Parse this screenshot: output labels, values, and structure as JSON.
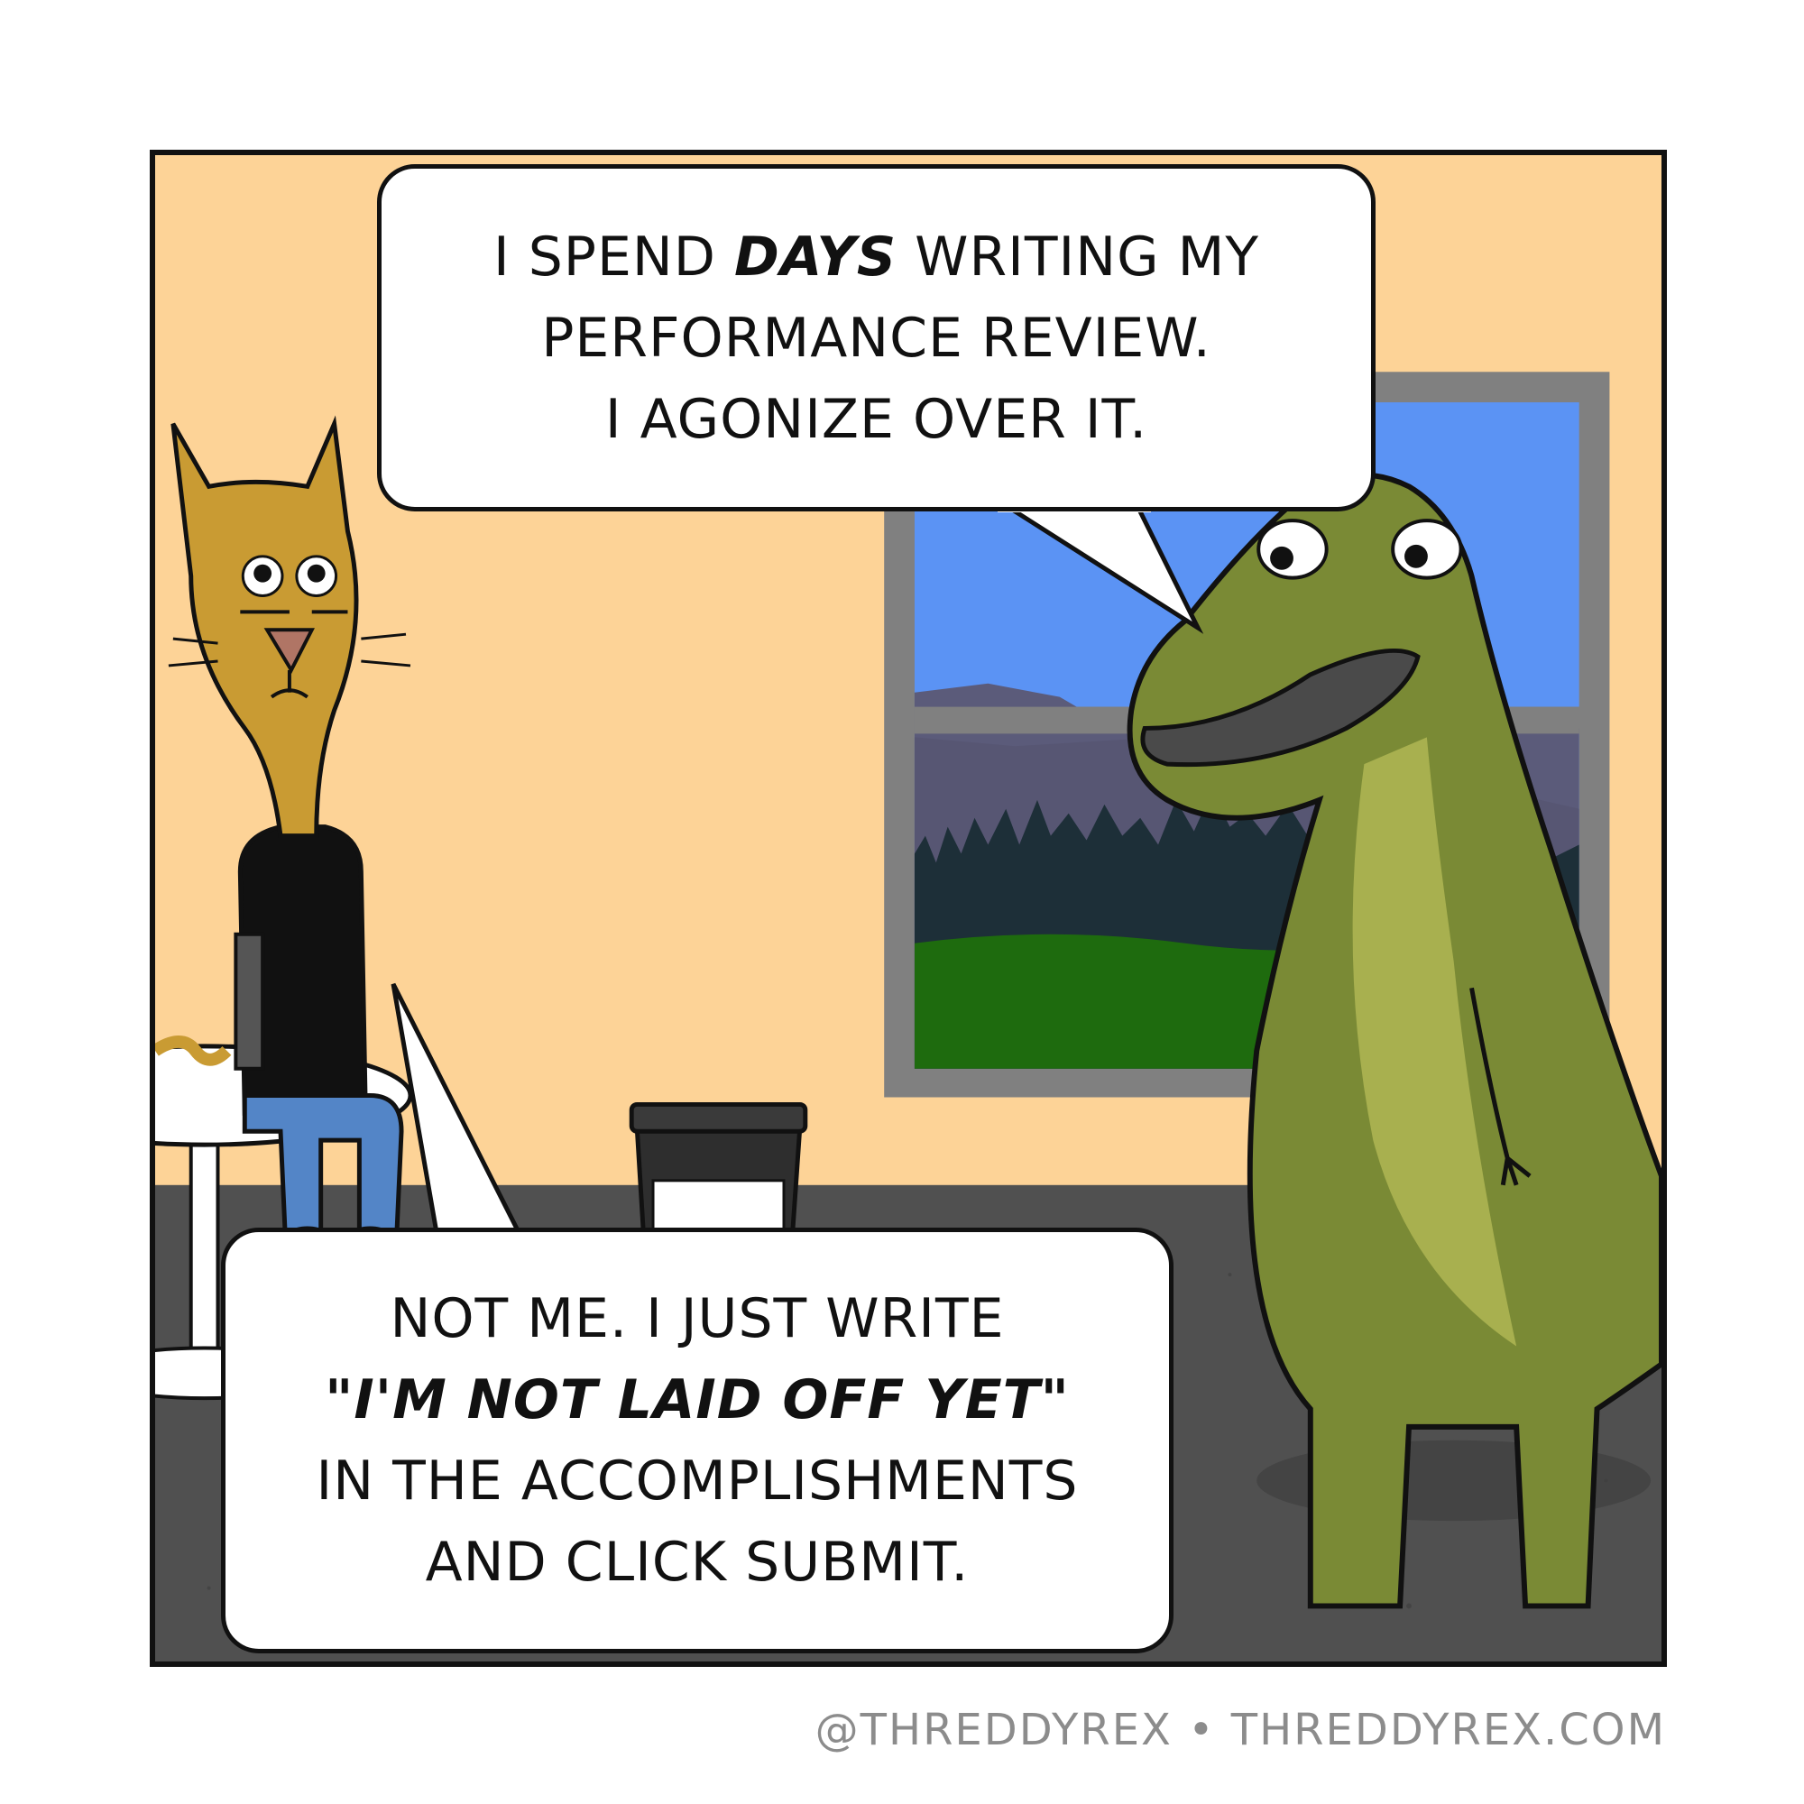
{
  "comic": {
    "top_bubble": {
      "line1_pre": "I SPEND ",
      "line1_em": "DAYS",
      "line1_post": " WRITING MY",
      "line2": "PERFORMANCE REVIEW.",
      "line3": "I AGONIZE OVER IT."
    },
    "bottom_bubble": {
      "line1": "NOT ME. I JUST WRITE",
      "line2_em": "\"I'M NOT LAID OFF YET\"",
      "line3": "IN THE ACCOMPLISHMENTS",
      "line4": "AND CLICK SUBMIT."
    },
    "credit": "@THREDDYREX • THREDDYREX.COM"
  },
  "characters": {
    "cat": "cat-character",
    "dinosaur": "dinosaur-character"
  },
  "colors": {
    "wall": "#fdd397",
    "floor": "#505050",
    "sky": "#5b93f4",
    "mountains": "#5b5b7a",
    "trees": "#1d2f38",
    "grass": "#1e6b0e",
    "window_frame": "#808080",
    "cat_fur": "#c99b33",
    "dino_body": "#7a8a35",
    "dino_belly": "#a8b04f"
  }
}
